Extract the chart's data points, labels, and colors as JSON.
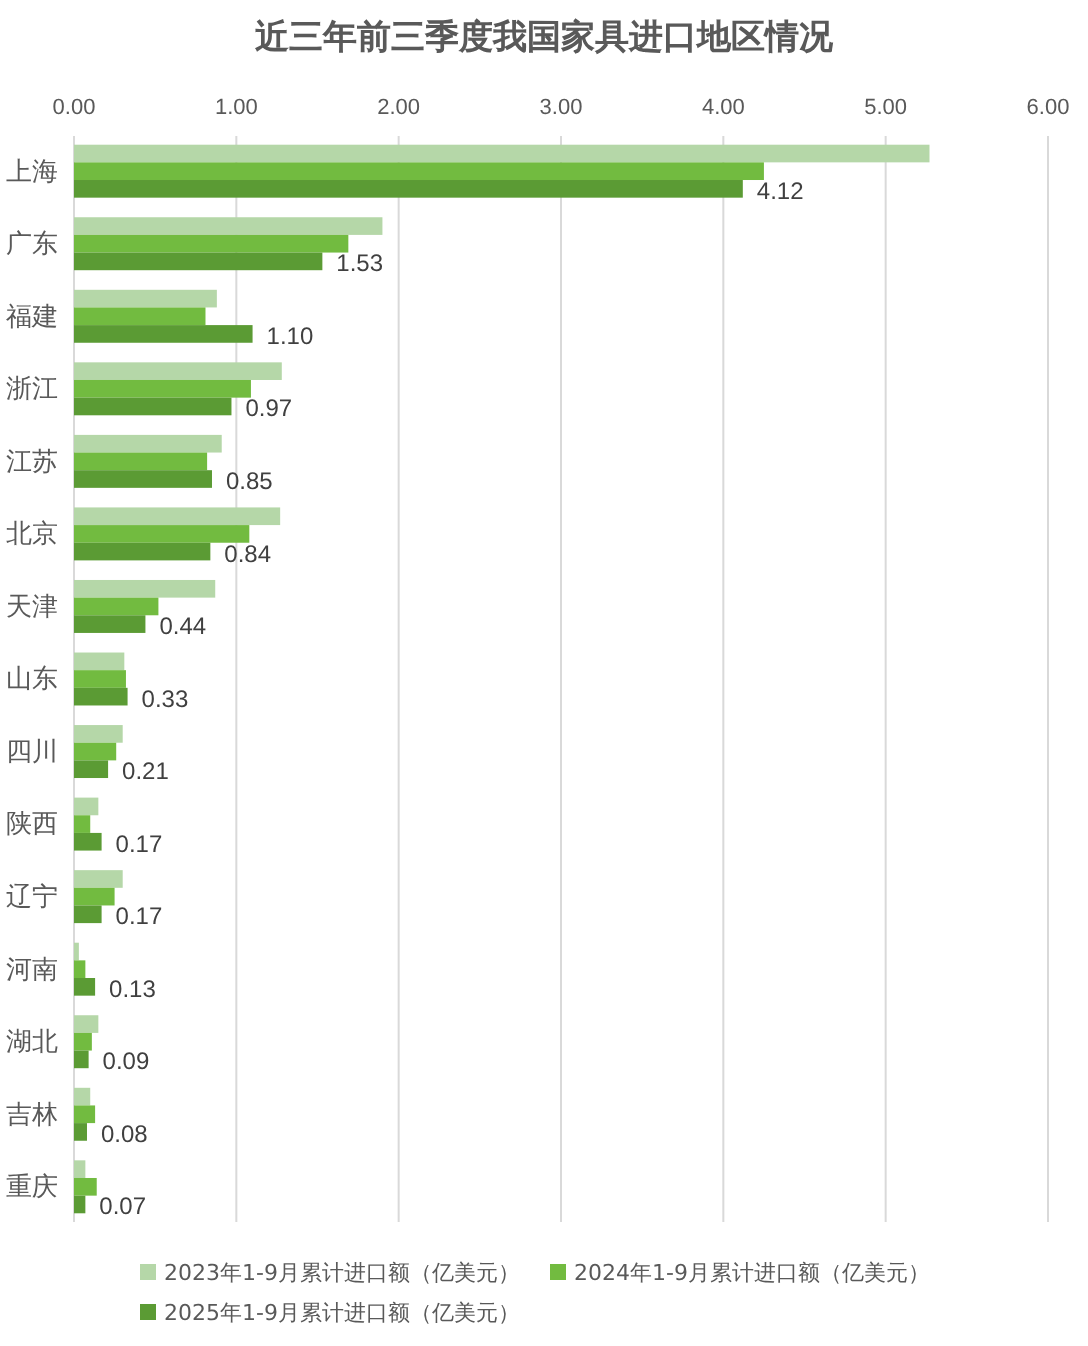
{
  "chart_data": {
    "type": "bar",
    "orientation": "horizontal",
    "title": "近三年前三季度我国家具进口地区情况",
    "categories": [
      "上海",
      "广东",
      "福建",
      "浙江",
      "江苏",
      "北京",
      "天津",
      "山东",
      "四川",
      "陕西",
      "辽宁",
      "河南",
      "湖北",
      "吉林",
      "重庆"
    ],
    "series": [
      {
        "name": "2023年1-9月累计进口额（亿美元）",
        "color": "#b5d7a8",
        "values": [
          5.27,
          1.9,
          0.88,
          1.28,
          0.91,
          1.27,
          0.87,
          0.31,
          0.3,
          0.15,
          0.3,
          0.03,
          0.15,
          0.1,
          0.07
        ]
      },
      {
        "name": "2024年1-9月累计进口额（亿美元）",
        "color": "#72bb40",
        "values": [
          4.25,
          1.69,
          0.81,
          1.09,
          0.82,
          1.08,
          0.52,
          0.32,
          0.26,
          0.1,
          0.25,
          0.07,
          0.11,
          0.13,
          0.14
        ]
      },
      {
        "name": "2025年1-9月累计进口额（亿美元）",
        "color": "#5b9b34",
        "values": [
          4.12,
          1.53,
          1.1,
          0.97,
          0.85,
          0.84,
          0.44,
          0.33,
          0.21,
          0.17,
          0.17,
          0.13,
          0.09,
          0.08,
          0.07
        ],
        "value_labels": [
          "4.12",
          "1.53",
          "1.10",
          "0.97",
          "0.85",
          "0.84",
          "0.44",
          "0.33",
          "0.21",
          "0.17",
          "0.17",
          "0.13",
          "0.09",
          "0.08",
          "0.07"
        ]
      }
    ],
    "xlim": [
      0,
      6
    ],
    "xticks": [
      {
        "value": 0,
        "label": "0.00"
      },
      {
        "value": 1,
        "label": "1.00"
      },
      {
        "value": 2,
        "label": "2.00"
      },
      {
        "value": 3,
        "label": "3.00"
      },
      {
        "value": 4,
        "label": "4.00"
      },
      {
        "value": 5,
        "label": "5.00"
      },
      {
        "value": 6,
        "label": "6.00"
      }
    ],
    "grid": "x",
    "legend": "bottom"
  }
}
